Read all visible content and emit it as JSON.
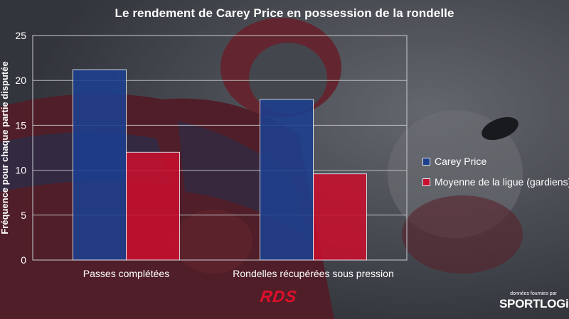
{
  "chart_data": {
    "type": "bar",
    "title": "Le rendement de Carey Price en possession de la rondelle",
    "ylabel": "Fréquence pour chaque partie disputée",
    "xlabel": "",
    "categories": [
      "Passes complétées",
      "Rondelles récupérées sous pression"
    ],
    "series": [
      {
        "name": "Carey Price",
        "values": [
          21.2,
          17.9
        ],
        "color": "#1c3f8f"
      },
      {
        "name": "Moyenne de la ligue (gardiens)",
        "values": [
          12.0,
          9.6
        ],
        "color": "#c8102e"
      }
    ],
    "ylim": [
      0,
      25
    ],
    "yticks": [
      0,
      5,
      10,
      15,
      20,
      25
    ],
    "grid": true,
    "legend": "right"
  },
  "branding": {
    "broadcaster": "RDS",
    "credit_text": "données fournies par",
    "credit_logo": "SPORTLOGiQ"
  }
}
